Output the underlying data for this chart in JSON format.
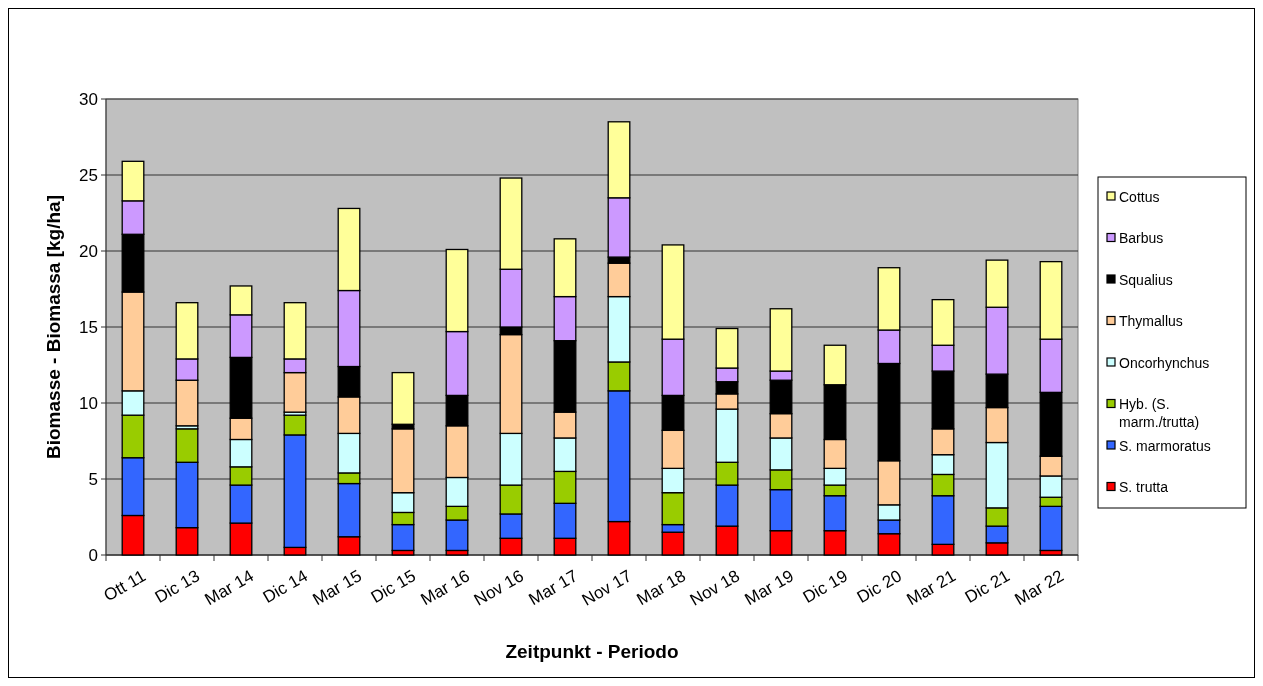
{
  "chart_data": {
    "type": "bar",
    "stacked": true,
    "xlabel": "Zeitpunkt - Periodo",
    "ylabel": "Biomasse - Biomassa [kg/ha]",
    "categories": [
      "Ott 11",
      "Dic 13",
      "Mar 14",
      "Dic 14",
      "Mar 15",
      "Dic 15",
      "Mar 16",
      "Nov 16",
      "Mar 17",
      "Nov 17",
      "Mar 18",
      "Nov 18",
      "Mar 19",
      "Dic 19",
      "Dic 20",
      "Mar 21",
      "Dic 21",
      "Mar 22"
    ],
    "ylim": [
      0,
      30
    ],
    "yticks": [
      0,
      5,
      10,
      15,
      20,
      25,
      30
    ],
    "grid": "y",
    "legend": "right",
    "series": [
      {
        "name": "S. trutta",
        "color": "#ff0000",
        "values": [
          2.6,
          1.8,
          2.1,
          0.5,
          1.2,
          0.3,
          0.3,
          1.1,
          1.1,
          2.2,
          1.5,
          1.9,
          1.6,
          1.6,
          1.4,
          0.7,
          0.8,
          0.3
        ]
      },
      {
        "name": "S. marmoratus",
        "color": "#3366ff",
        "values": [
          3.8,
          4.3,
          2.5,
          7.4,
          3.5,
          1.7,
          2.0,
          1.6,
          2.3,
          8.6,
          0.5,
          2.7,
          2.7,
          2.3,
          0.9,
          3.2,
          1.1,
          2.9
        ]
      },
      {
        "name": "Hyb. (S. marm./trutta)",
        "color": "#99cc00",
        "values": [
          2.8,
          2.2,
          1.2,
          1.3,
          0.7,
          0.8,
          0.9,
          1.9,
          2.1,
          1.9,
          2.1,
          1.5,
          1.3,
          0.7,
          null,
          1.4,
          1.2,
          0.6
        ]
      },
      {
        "name": "Oncorhynchus",
        "color": "#ccffff",
        "values": [
          1.6,
          0.2,
          1.8,
          0.2,
          2.6,
          1.3,
          1.9,
          3.4,
          2.2,
          4.3,
          1.6,
          3.5,
          2.1,
          1.1,
          1.0,
          1.3,
          4.3,
          1.4
        ]
      },
      {
        "name": "Thymallus",
        "color": "#ffcc99",
        "values": [
          6.5,
          3.0,
          1.4,
          2.6,
          2.4,
          4.2,
          3.4,
          6.5,
          1.7,
          2.2,
          2.5,
          1.0,
          1.6,
          1.9,
          2.9,
          1.7,
          2.3,
          1.3
        ]
      },
      {
        "name": "Squalius",
        "color": "#000000",
        "values": [
          3.8,
          null,
          4.0,
          null,
          2.0,
          0.3,
          2.0,
          0.5,
          4.7,
          0.4,
          2.3,
          0.8,
          2.2,
          3.6,
          6.4,
          3.8,
          2.2,
          4.2
        ]
      },
      {
        "name": "Barbus",
        "color": "#cc99ff",
        "values": [
          2.2,
          1.4,
          2.8,
          0.9,
          5.0,
          null,
          4.2,
          3.8,
          2.9,
          3.9,
          3.7,
          0.9,
          0.6,
          null,
          2.2,
          1.7,
          4.4,
          3.5
        ]
      },
      {
        "name": "Cottus",
        "color": "#ffff99",
        "values": [
          2.6,
          3.7,
          1.9,
          3.7,
          5.4,
          3.4,
          5.4,
          6.0,
          3.8,
          5.0,
          6.2,
          2.6,
          4.1,
          2.6,
          4.1,
          3.0,
          3.1,
          5.1
        ]
      }
    ]
  }
}
